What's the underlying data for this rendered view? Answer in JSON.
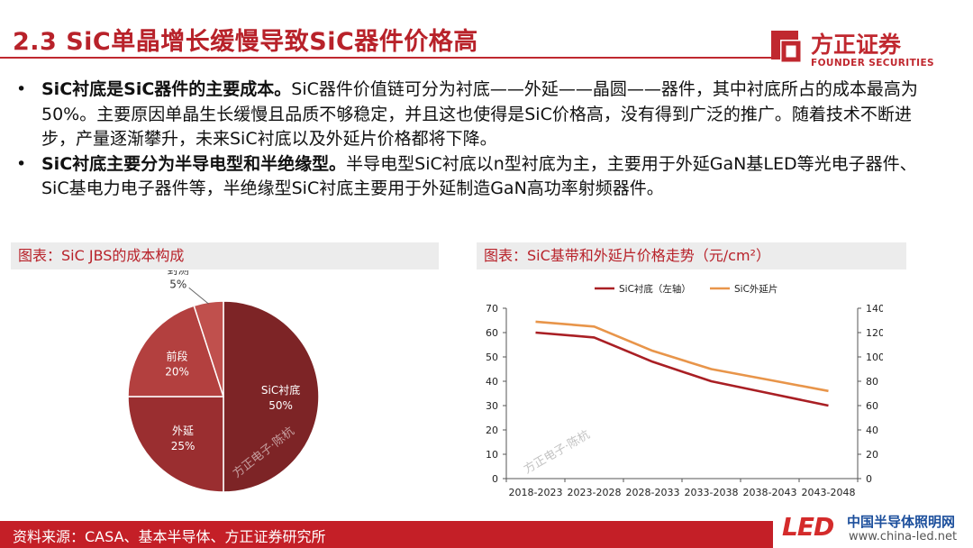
{
  "header": {
    "title": "2.3 SiC单晶增长缓慢导致SiC器件价格高",
    "logo_cn": "方正证券",
    "logo_en": "FOUNDER SECURITIES"
  },
  "bullets": [
    {
      "lead": "SiC衬底是SiC器件的主要成本。",
      "text": "SiC器件价值链可分为衬底——外延——晶圆——器件，其中衬底所占的成本最高为50%。主要原因单晶生长缓慢且品质不够稳定，并且这也使得是SiC价格高，没有得到广泛的推广。随着技术不断进步，产量逐渐攀升，未来SiC衬底以及外延片价格都将下降。"
    },
    {
      "lead": "SiC衬底主要分为半导电型和半绝缘型。",
      "text": "半导电型SiC衬底以n型衬底为主，主要用于外延GaN基LED等光电子器件、SiC基电力电子器件等，半绝缘型SiC衬底主要用于外延制造GaN高功率射频器件。"
    }
  ],
  "left_panel": {
    "heading": "图表：SiC JBS的成本构成",
    "watermark": "方正电子·陈杭"
  },
  "right_panel": {
    "heading": "图表：SiC基带和外延片价格走势（元/cm²）",
    "watermark": "方正电子·陈杭"
  },
  "footer": {
    "source": "资料来源：CASA、基本半导体、方正证券研究所",
    "wm_led": "LED",
    "wm_cn": "中国半导体照明网",
    "wm_url": "www.china-led.net"
  },
  "colors": {
    "brand_red": "#c0282f",
    "pie_main": "#7d2426",
    "pie_mid": "#9a2e30",
    "pie_light": "#b3403f",
    "pie_top": "#c0504d",
    "line_dark": "#a91f24",
    "line_orange": "#e8954a"
  },
  "chart_data": [
    {
      "type": "pie",
      "title": "图表：SiC JBS的成本构成",
      "slices": [
        {
          "label": "SiC衬底",
          "value": 50,
          "display": "50%"
        },
        {
          "label": "外延",
          "value": 25,
          "display": "25%"
        },
        {
          "label": "前段",
          "value": 20,
          "display": "20%"
        },
        {
          "label": "封测",
          "value": 5,
          "display": "5%"
        }
      ]
    },
    {
      "type": "line",
      "title": "图表：SiC基带和外延片价格走势（元/cm²）",
      "categories": [
        "2018-2023",
        "2023-2028",
        "2028-2033",
        "2033-2038",
        "2038-2043",
        "2043-2048"
      ],
      "series": [
        {
          "name": "SiC衬底（左轴）",
          "axis": "left",
          "values": [
            60,
            58,
            48,
            40,
            35,
            30
          ]
        },
        {
          "name": "SiC外延片",
          "axis": "right",
          "values": [
            129,
            125,
            105,
            90,
            81,
            72
          ]
        }
      ],
      "ylim_left": [
        0,
        70
      ],
      "yticks_left": [
        0,
        10,
        20,
        30,
        40,
        50,
        60,
        70
      ],
      "ylim_right": [
        0,
        140
      ],
      "yticks_right": [
        0,
        20,
        40,
        60,
        80,
        100,
        120,
        140
      ],
      "legend": "top",
      "grid": false
    }
  ]
}
